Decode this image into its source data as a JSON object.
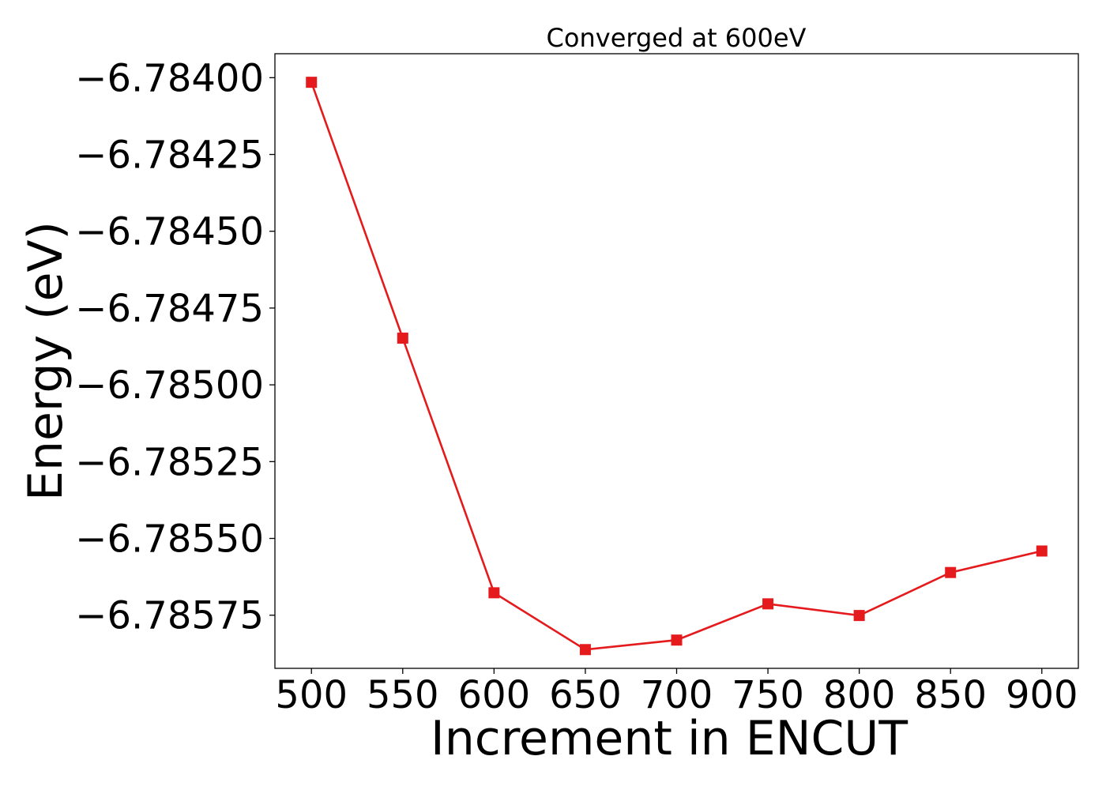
{
  "chart_data": {
    "type": "line",
    "title": "Converged at 600eV",
    "xlabel": "Increment in ENCUT",
    "ylabel": "Energy (eV)",
    "x": [
      500,
      550,
      600,
      650,
      700,
      750,
      800,
      850,
      900
    ],
    "series": [
      {
        "values": [
          -6.784015,
          -6.784848,
          -6.785677,
          -6.785862,
          -6.785831,
          -6.785713,
          -6.785751,
          -6.785611,
          -6.785541
        ],
        "color": "#e41a1c",
        "marker": "square"
      }
    ],
    "xticks": [
      "500",
      "550",
      "600",
      "650",
      "700",
      "750",
      "800",
      "850",
      "900"
    ],
    "yticks": [
      -6.784,
      -6.78425,
      -6.7845,
      -6.78475,
      -6.785,
      -6.78525,
      -6.7855,
      -6.78575
    ],
    "ytick_labels": [
      "−6.78400",
      "−6.78425",
      "−6.78450",
      "−6.78475",
      "−6.78500",
      "−6.78525",
      "−6.78550",
      "−6.78575"
    ],
    "xlim": [
      480,
      920
    ],
    "ylim": [
      -6.785923,
      -6.783922
    ],
    "grid": false
  }
}
